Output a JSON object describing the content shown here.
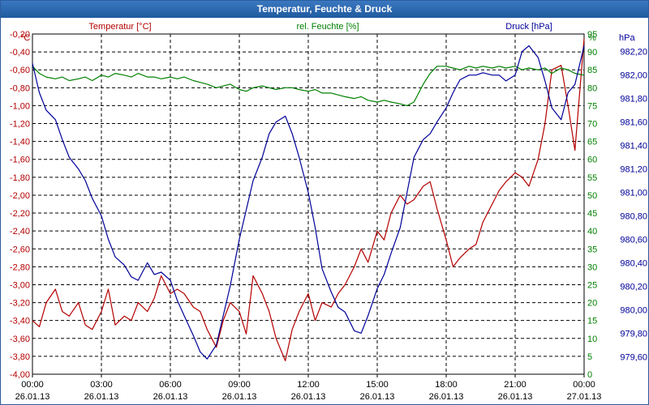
{
  "window": {
    "title": "Temperatur, Feuchte & Druck"
  },
  "chart_data": {
    "type": "line",
    "title": "Temperatur, Feuchte & Druck",
    "x_ticks": [
      {
        "time": "00:00",
        "date": "26.01.13"
      },
      {
        "time": "03:00",
        "date": "26.01.13"
      },
      {
        "time": "06:00",
        "date": "26.01.13"
      },
      {
        "time": "09:00",
        "date": "26.01.13"
      },
      {
        "time": "12:00",
        "date": "26.01.13"
      },
      {
        "time": "15:00",
        "date": "26.01.13"
      },
      {
        "time": "18:00",
        "date": "26.01.13"
      },
      {
        "time": "21:00",
        "date": "26.01.13"
      },
      {
        "time": "00:00",
        "date": "27.01.13"
      }
    ],
    "xlim": [
      0,
      24
    ],
    "grid": true,
    "axes": {
      "temperature": {
        "label": "Temperatur [°C]",
        "unit": "°C",
        "ylim": [
          -4.0,
          -0.2
        ],
        "ticks": [
          "-4,00",
          "-3,80",
          "-3,60",
          "-3,40",
          "-3,20",
          "-3,00",
          "-2,80",
          "-2,60",
          "-2,40",
          "-2,20",
          "-2,00",
          "-1,80",
          "-1,60",
          "-1,40",
          "-1,20",
          "-1,00",
          "-0,80",
          "-0,60",
          "-0,40",
          "-0,20"
        ],
        "color": "#b40000"
      },
      "humidity": {
        "label": "rel. Feuchte [%]",
        "unit": "%",
        "ylim": [
          0,
          95
        ],
        "ticks": [
          "0",
          "5",
          "10",
          "15",
          "20",
          "25",
          "30",
          "35",
          "40",
          "45",
          "50",
          "55",
          "60",
          "65",
          "70",
          "75",
          "80",
          "85",
          "90",
          "95"
        ],
        "color": "#008000"
      },
      "pressure": {
        "label": "Druck [hPa]",
        "unit": "hPa",
        "ylim": [
          979.45,
          982.35
        ],
        "ticks": [
          "979,60",
          "979,80",
          "980,00",
          "980,20",
          "980,40",
          "980,60",
          "980,80",
          "981,00",
          "981,20",
          "981,40",
          "981,60",
          "981,80",
          "982,00",
          "982,20"
        ],
        "color": "#000099"
      }
    },
    "series": [
      {
        "name": "Temperatur [°C]",
        "axis": "temperature",
        "color": "#b40000",
        "x": [
          0,
          0.3,
          0.6,
          1.0,
          1.3,
          1.6,
          2.0,
          2.3,
          2.6,
          3.0,
          3.3,
          3.6,
          4.0,
          4.3,
          4.6,
          5.0,
          5.3,
          5.6,
          6.0,
          6.3,
          6.6,
          7.0,
          7.3,
          7.6,
          8.0,
          8.3,
          8.6,
          9.0,
          9.3,
          9.6,
          10.0,
          10.3,
          10.6,
          11.0,
          11.3,
          11.6,
          12.0,
          12.3,
          12.6,
          13.0,
          13.3,
          13.6,
          14.0,
          14.3,
          14.6,
          15.0,
          15.3,
          15.6,
          16.0,
          16.3,
          16.6,
          17.0,
          17.3,
          17.6,
          18.0,
          18.3,
          18.6,
          19.0,
          19.3,
          19.6,
          20.0,
          20.3,
          20.6,
          21.0,
          21.3,
          21.6,
          22.0,
          22.3,
          22.6,
          23.0,
          23.3,
          23.6,
          24.0
        ],
        "values": [
          -3.4,
          -3.47,
          -3.2,
          -3.05,
          -3.3,
          -3.35,
          -3.2,
          -3.45,
          -3.5,
          -3.3,
          -3.05,
          -3.45,
          -3.35,
          -3.4,
          -3.2,
          -3.3,
          -3.15,
          -2.9,
          -3.1,
          -3.05,
          -3.1,
          -3.25,
          -3.3,
          -3.5,
          -3.7,
          -3.4,
          -3.2,
          -3.3,
          -3.55,
          -2.9,
          -3.1,
          -3.3,
          -3.6,
          -3.85,
          -3.5,
          -3.3,
          -3.1,
          -3.4,
          -3.2,
          -3.25,
          -3.1,
          -3.0,
          -2.8,
          -2.6,
          -2.75,
          -2.4,
          -2.5,
          -2.2,
          -2.0,
          -2.1,
          -2.05,
          -1.9,
          -1.85,
          -2.15,
          -2.5,
          -2.8,
          -2.7,
          -2.6,
          -2.55,
          -2.3,
          -2.1,
          -1.95,
          -1.85,
          -1.75,
          -1.8,
          -1.9,
          -1.6,
          -1.2,
          -0.6,
          -0.55,
          -1.0,
          -1.5,
          -0.25
        ]
      },
      {
        "name": "rel. Feuchte [%]",
        "axis": "humidity",
        "color": "#008000",
        "x": [
          0,
          0.3,
          0.6,
          1.0,
          1.3,
          1.6,
          2.0,
          2.3,
          2.6,
          3.0,
          3.3,
          3.6,
          4.0,
          4.3,
          4.6,
          5.0,
          5.3,
          5.6,
          6.0,
          6.3,
          6.6,
          7.0,
          7.3,
          7.6,
          8.0,
          8.3,
          8.6,
          9.0,
          9.3,
          9.6,
          10.0,
          10.3,
          10.6,
          11.0,
          11.3,
          11.6,
          12.0,
          12.3,
          12.6,
          13.0,
          13.3,
          13.6,
          14.0,
          14.3,
          14.6,
          15.0,
          15.3,
          15.6,
          16.0,
          16.3,
          16.6,
          17.0,
          17.3,
          17.6,
          18.0,
          18.3,
          18.6,
          19.0,
          19.3,
          19.6,
          20.0,
          20.3,
          20.6,
          21.0,
          21.3,
          21.6,
          22.0,
          22.3,
          22.6,
          23.0,
          23.3,
          23.6,
          24.0
        ],
        "values": [
          86,
          84,
          83,
          82.5,
          83,
          82,
          82.5,
          83,
          82,
          83.5,
          83,
          84,
          83.5,
          83,
          84,
          83,
          83,
          82.5,
          83,
          82.5,
          83,
          82,
          81.5,
          81,
          80,
          80.5,
          81,
          79.5,
          79,
          80,
          80.5,
          80,
          79.5,
          80,
          80,
          79.5,
          79,
          79.5,
          78.5,
          78.5,
          78,
          77.5,
          77,
          77.5,
          76.5,
          76,
          76.5,
          76,
          75.5,
          75,
          76,
          81,
          84,
          86,
          86,
          85.5,
          85,
          86,
          85.5,
          86,
          85.5,
          86,
          85.5,
          86,
          85,
          85.5,
          85,
          85.5,
          84,
          85.5,
          85,
          84,
          83.5
        ]
      },
      {
        "name": "Druck [hPa]",
        "axis": "pressure",
        "color": "#000099",
        "x": [
          0,
          0.3,
          0.6,
          1.0,
          1.3,
          1.6,
          2.0,
          2.3,
          2.6,
          3.0,
          3.3,
          3.6,
          4.0,
          4.3,
          4.6,
          5.0,
          5.3,
          5.6,
          6.0,
          6.3,
          6.6,
          7.0,
          7.3,
          7.6,
          8.0,
          8.3,
          8.6,
          9.0,
          9.3,
          9.6,
          10.0,
          10.3,
          10.6,
          11.0,
          11.3,
          11.6,
          12.0,
          12.3,
          12.6,
          13.0,
          13.3,
          13.6,
          14.0,
          14.3,
          14.6,
          15.0,
          15.3,
          15.6,
          16.0,
          16.3,
          16.6,
          17.0,
          17.3,
          17.6,
          18.0,
          18.3,
          18.6,
          19.0,
          19.3,
          19.6,
          20.0,
          20.3,
          20.6,
          21.0,
          21.3,
          21.6,
          22.0,
          22.3,
          22.6,
          23.0,
          23.3,
          23.6,
          24.0
        ],
        "values": [
          982.1,
          981.85,
          981.7,
          981.62,
          981.45,
          981.3,
          981.2,
          981.1,
          980.95,
          980.8,
          980.6,
          980.45,
          980.38,
          980.28,
          980.25,
          980.4,
          980.3,
          980.32,
          980.25,
          980.08,
          979.95,
          979.78,
          979.64,
          979.58,
          979.7,
          979.95,
          980.2,
          980.6,
          980.85,
          981.1,
          981.3,
          981.5,
          981.6,
          981.65,
          981.5,
          981.3,
          981.0,
          980.7,
          980.35,
          980.15,
          980.02,
          979.98,
          979.82,
          979.8,
          979.95,
          980.18,
          980.3,
          980.48,
          980.7,
          981.0,
          981.3,
          981.45,
          981.5,
          981.6,
          981.72,
          981.85,
          981.96,
          982.0,
          982.0,
          982.02,
          982.0,
          982.0,
          981.95,
          982.0,
          982.2,
          982.25,
          982.15,
          981.95,
          981.72,
          981.62,
          981.85,
          981.92,
          982.25
        ]
      }
    ]
  }
}
